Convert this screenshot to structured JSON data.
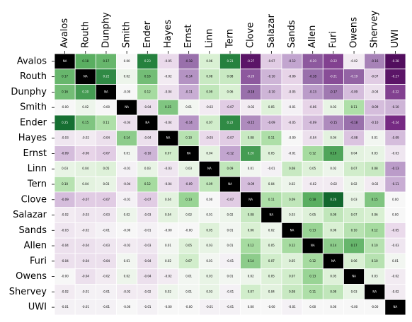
{
  "chart_data": {
    "type": "heatmap",
    "categories": [
      "Avalos",
      "Routh",
      "Dunphy",
      "Smith",
      "Ender",
      "Hayes",
      "Ernst",
      "Linn",
      "Tern",
      "Clove",
      "Salazar",
      "Sands",
      "Allen",
      "Furi",
      "Owens",
      "Shervey",
      "UWI"
    ],
    "values": [
      [
        null,
        0.18,
        0.17,
        0.0,
        0.23,
        -0.05,
        -0.18,
        0.06,
        0.23,
        -0.27,
        -0.07,
        -0.12,
        -0.2,
        -0.22,
        -0.02,
        -0.16,
        -0.28
      ],
      [
        0.17,
        null,
        0.22,
        0.02,
        0.16,
        -0.02,
        -0.14,
        0.08,
        0.08,
        -0.2,
        -0.1,
        -0.06,
        -0.18,
        -0.21,
        -0.19,
        -0.07,
        -0.27
      ],
      [
        0.16,
        0.2,
        null,
        -0.0,
        0.12,
        -0.04,
        -0.11,
        0.09,
        0.06,
        -0.18,
        -0.1,
        -0.05,
        -0.13,
        -0.17,
        -0.09,
        -0.04,
        -0.22
      ],
      [
        -0.0,
        0.02,
        -0.0,
        null,
        -0.04,
        0.15,
        0.01,
        -0.02,
        -0.07,
        -0.02,
        0.05,
        -0.01,
        -0.06,
        0.03,
        0.11,
        -0.09,
        -0.1
      ],
      [
        0.25,
        0.15,
        0.11,
        -0.04,
        null,
        -0.04,
        -0.14,
        0.07,
        0.22,
        -0.15,
        -0.09,
        -0.05,
        -0.09,
        -0.15,
        -0.18,
        -0.1,
        -0.24
      ],
      [
        -0.03,
        -0.02,
        -0.04,
        0.14,
        -0.04,
        null,
        0.1,
        -0.05,
        -0.07,
        0.08,
        0.11,
        -0.0,
        -0.04,
        0.04,
        -0.08,
        0.01,
        -0.09
      ],
      [
        -0.09,
        -0.06,
        -0.07,
        0.01,
        -0.1,
        0.07,
        null,
        0.04,
        -0.12,
        0.2,
        0.05,
        -0.01,
        0.12,
        0.19,
        0.04,
        0.03,
        -0.03
      ],
      [
        0.03,
        0.04,
        0.05,
        -0.01,
        0.03,
        -0.03,
        0.03,
        null,
        0.09,
        0.01,
        -0.01,
        0.08,
        0.05,
        0.02,
        0.07,
        0.08,
        -0.13
      ],
      [
        0.1,
        0.04,
        0.03,
        -0.04,
        0.12,
        -0.04,
        -0.09,
        0.09,
        null,
        -0.09,
        0.04,
        0.02,
        -0.02,
        -0.02,
        0.02,
        -0.02,
        -0.11
      ],
      [
        -0.09,
        -0.07,
        -0.07,
        -0.01,
        -0.07,
        0.04,
        0.13,
        0.0,
        -0.07,
        null,
        0.11,
        0.09,
        0.18,
        0.26,
        0.03,
        0.15,
        0.0
      ],
      [
        -0.02,
        -0.03,
        -0.03,
        0.02,
        -0.03,
        0.04,
        0.02,
        0.01,
        0.02,
        0.08,
        null,
        0.03,
        0.05,
        0.09,
        0.07,
        0.06,
        0.0
      ],
      [
        -0.03,
        -0.02,
        -0.01,
        -0.0,
        -0.01,
        -0.0,
        -0.0,
        0.05,
        0.01,
        0.06,
        0.02,
        null,
        0.13,
        0.06,
        0.1,
        0.12,
        -0.05
      ],
      [
        -0.04,
        -0.04,
        -0.03,
        -0.02,
        -0.03,
        0.01,
        0.05,
        0.03,
        0.01,
        0.12,
        0.05,
        0.12,
        null,
        0.14,
        0.17,
        0.1,
        -0.03
      ],
      [
        -0.04,
        -0.04,
        -0.04,
        0.01,
        -0.04,
        0.02,
        0.07,
        0.01,
        -0.01,
        0.14,
        0.07,
        0.05,
        0.12,
        null,
        0.06,
        0.1,
        0.01
      ],
      [
        -0.0,
        -0.04,
        -0.02,
        0.02,
        -0.04,
        -0.02,
        0.01,
        0.03,
        0.01,
        0.02,
        0.05,
        0.07,
        0.13,
        0.05,
        null,
        0.03,
        -0.02
      ],
      [
        -0.02,
        -0.01,
        -0.01,
        -0.02,
        -0.02,
        0.02,
        0.01,
        0.03,
        -0.01,
        0.07,
        0.04,
        0.08,
        0.11,
        0.09,
        0.03,
        null,
        -0.02
      ],
      [
        -0.01,
        -0.01,
        -0.01,
        -0.0,
        -0.01,
        -0.0,
        -0.0,
        -0.01,
        -0.01,
        0.0,
        -0.0,
        -0.01,
        0.0,
        0.0,
        -0.0,
        -0.0,
        null
      ]
    ],
    "value_labels": [
      [
        "NA",
        "0.18",
        "0.17",
        "0.00",
        "0.23",
        "-0.05",
        "-0.18",
        "0.06",
        "0.23",
        "-0.27",
        "-0.07",
        "-0.12",
        "-0.20",
        "-0.22",
        "-0.02",
        "-0.16",
        "-0.28"
      ],
      [
        "0.17",
        "NA",
        "0.22",
        "0.02",
        "0.16",
        "-0.02",
        "-0.14",
        "0.08",
        "0.08",
        "-0.20",
        "-0.10",
        "-0.06",
        "-0.18",
        "-0.21",
        "-0.19",
        "-0.07",
        "-0.27"
      ],
      [
        "0.16",
        "0.20",
        "NA",
        "-0.00",
        "0.12",
        "-0.04",
        "-0.11",
        "0.09",
        "0.06",
        "-0.18",
        "-0.10",
        "-0.05",
        "-0.13",
        "-0.17",
        "-0.09",
        "-0.04",
        "-0.22"
      ],
      [
        "-0.00",
        "0.02",
        "-0.00",
        "NA",
        "-0.04",
        "0.15",
        "0.01",
        "-0.02",
        "-0.07",
        "-0.02",
        "0.05",
        "-0.01",
        "-0.06",
        "0.03",
        "0.11",
        "-0.09",
        "-0.10"
      ],
      [
        "0.25",
        "0.15",
        "0.11",
        "-0.04",
        "NA",
        "-0.04",
        "-0.14",
        "0.07",
        "0.22",
        "-0.15",
        "-0.09",
        "-0.05",
        "-0.09",
        "-0.15",
        "-0.18",
        "-0.10",
        "-0.24"
      ],
      [
        "-0.03",
        "-0.02",
        "-0.04",
        "0.14",
        "-0.04",
        "NA",
        "0.10",
        "-0.05",
        "-0.07",
        "0.08",
        "0.11",
        "-0.00",
        "-0.04",
        "0.04",
        "-0.08",
        "0.01",
        "-0.09"
      ],
      [
        "-0.09",
        "-0.06",
        "-0.07",
        "0.01",
        "-0.10",
        "0.07",
        "NA",
        "0.04",
        "-0.12",
        "0.20",
        "0.05",
        "-0.01",
        "0.12",
        "0.19",
        "0.04",
        "0.03",
        "-0.03"
      ],
      [
        "0.03",
        "0.04",
        "0.05",
        "-0.01",
        "0.03",
        "-0.03",
        "0.03",
        "NA",
        "0.09",
        "0.01",
        "-0.01",
        "0.08",
        "0.05",
        "0.02",
        "0.07",
        "0.08",
        "-0.13"
      ],
      [
        "0.10",
        "0.04",
        "0.03",
        "-0.04",
        "0.12",
        "-0.04",
        "-0.09",
        "0.09",
        "NA",
        "-0.09",
        "0.04",
        "0.02",
        "-0.02",
        "-0.02",
        "0.02",
        "-0.02",
        "-0.11"
      ],
      [
        "-0.09",
        "-0.07",
        "-0.07",
        "-0.01",
        "-0.07",
        "0.04",
        "0.13",
        "0.00",
        "-0.07",
        "NA",
        "0.11",
        "0.09",
        "0.18",
        "0.26",
        "0.03",
        "0.15",
        "0.00"
      ],
      [
        "-0.02",
        "-0.03",
        "-0.03",
        "0.02",
        "-0.03",
        "0.04",
        "0.02",
        "0.01",
        "0.02",
        "0.08",
        "NA",
        "0.03",
        "0.05",
        "0.09",
        "0.07",
        "0.06",
        "0.00"
      ],
      [
        "-0.03",
        "-0.02",
        "-0.01",
        "-0.00",
        "-0.01",
        "-0.00",
        "-0.00",
        "0.05",
        "0.01",
        "0.06",
        "0.02",
        "NA",
        "0.13",
        "0.06",
        "0.10",
        "0.12",
        "-0.05"
      ],
      [
        "-0.04",
        "-0.04",
        "-0.03",
        "-0.02",
        "-0.03",
        "0.01",
        "0.05",
        "0.03",
        "0.01",
        "0.12",
        "0.05",
        "0.12",
        "NA",
        "0.14",
        "0.17",
        "0.10",
        "-0.03"
      ],
      [
        "-0.04",
        "-0.04",
        "-0.04",
        "0.01",
        "-0.04",
        "0.02",
        "0.07",
        "0.01",
        "-0.01",
        "0.14",
        "0.07",
        "0.05",
        "0.12",
        "NA",
        "0.06",
        "0.10",
        "0.01"
      ],
      [
        "-0.00",
        "-0.04",
        "-0.02",
        "0.02",
        "-0.04",
        "-0.02",
        "0.01",
        "0.03",
        "0.01",
        "0.02",
        "0.05",
        "0.07",
        "0.13",
        "0.05",
        "NA",
        "0.03",
        "-0.02"
      ],
      [
        "-0.02",
        "-0.01",
        "-0.01",
        "-0.02",
        "-0.02",
        "0.02",
        "0.01",
        "0.03",
        "-0.01",
        "0.07",
        "0.04",
        "0.08",
        "0.11",
        "0.09",
        "0.03",
        "NA",
        "-0.02"
      ],
      [
        "-0.01",
        "-0.01",
        "-0.01",
        "-0.00",
        "-0.01",
        "-0.00",
        "-0.00",
        "-0.01",
        "-0.01",
        "0.00",
        "-0.00",
        "-0.01",
        "0.00",
        "0.00",
        "-0.00",
        "-0.00",
        "NA"
      ]
    ],
    "colormap": [
      "#40004b",
      "#762a83",
      "#9970ab",
      "#c2a5cf",
      "#e7d4e8",
      "#f7f7f7",
      "#d9f0d3",
      "#a6dba0",
      "#5aae61",
      "#1b7837",
      "#00441b"
    ],
    "clim": [
      -0.3,
      0.3
    ],
    "missing_color": "#000000"
  }
}
